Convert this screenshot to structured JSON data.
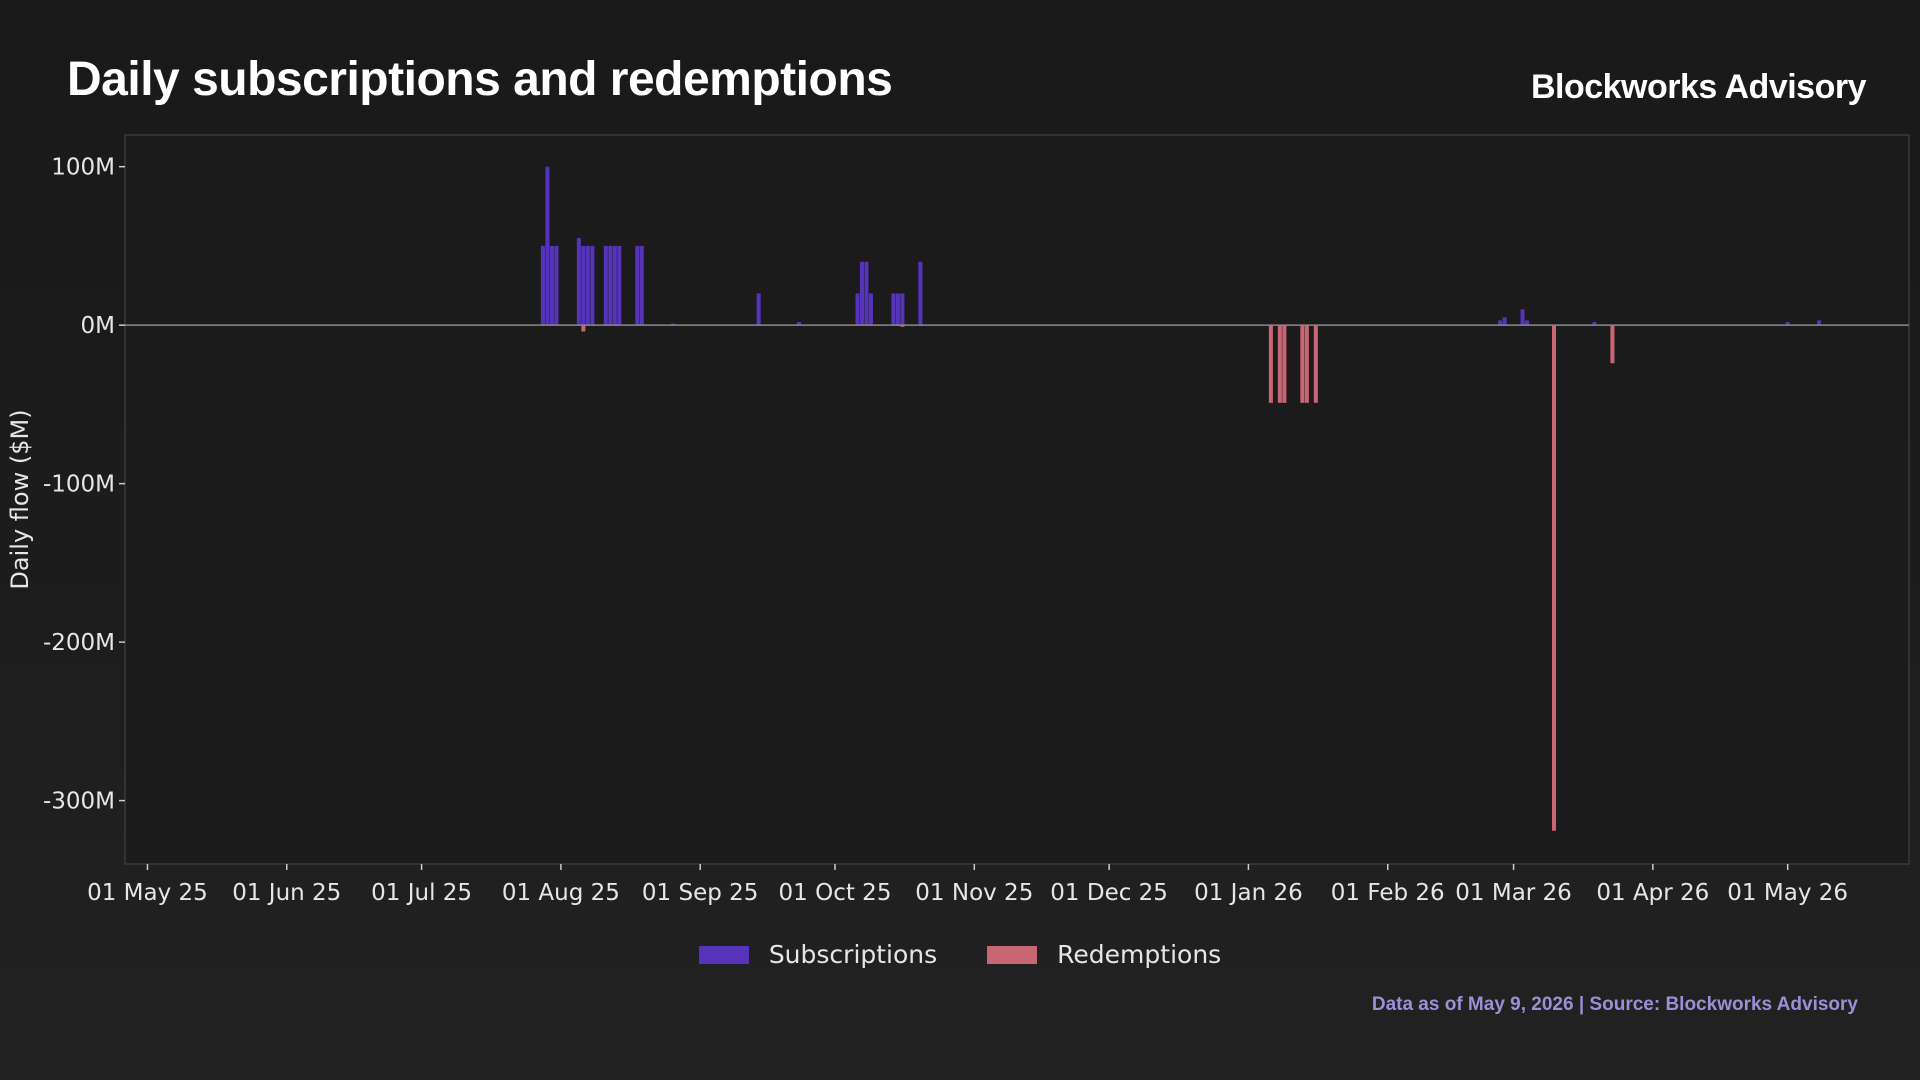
{
  "header": {
    "title": "Daily subscriptions and redemptions",
    "brand": "Blockworks Advisory"
  },
  "footer": {
    "note": "Data as of May 9, 2026 | Source: Blockworks Advisory"
  },
  "colors": {
    "subscriptions": "#5533bb",
    "redemptions": "#c96674",
    "zero_line": "#8a8a8a",
    "plot_border": "#3a3a3a"
  },
  "chart_data": {
    "type": "bar",
    "title": "Daily subscriptions and redemptions",
    "ylabel": "Daily flow ($M)",
    "xlabel": "",
    "ylim": [
      -340,
      120
    ],
    "xlim": [
      "2025-04-26",
      "2026-05-28"
    ],
    "yticks": [
      {
        "value": 100,
        "label": "100M"
      },
      {
        "value": 0,
        "label": "0M"
      },
      {
        "value": -100,
        "label": "-100M"
      },
      {
        "value": -200,
        "label": "-200M"
      },
      {
        "value": -300,
        "label": "-300M"
      }
    ],
    "xticks": [
      {
        "date": "2025-05-01",
        "label": "01 May 25"
      },
      {
        "date": "2025-06-01",
        "label": "01 Jun 25"
      },
      {
        "date": "2025-07-01",
        "label": "01 Jul 25"
      },
      {
        "date": "2025-08-01",
        "label": "01 Aug 25"
      },
      {
        "date": "2025-09-01",
        "label": "01 Sep 25"
      },
      {
        "date": "2025-10-01",
        "label": "01 Oct 25"
      },
      {
        "date": "2025-11-01",
        "label": "01 Nov 25"
      },
      {
        "date": "2025-12-01",
        "label": "01 Dec 25"
      },
      {
        "date": "2026-01-01",
        "label": "01 Jan 26"
      },
      {
        "date": "2026-02-01",
        "label": "01 Feb 26"
      },
      {
        "date": "2026-03-01",
        "label": "01 Mar 26"
      },
      {
        "date": "2026-04-01",
        "label": "01 Apr 26"
      },
      {
        "date": "2026-05-01",
        "label": "01 May 26"
      }
    ],
    "grid": false,
    "legend_position": "bottom-center",
    "series": [
      {
        "name": "Subscriptions",
        "points": [
          {
            "date": "2025-07-28",
            "value": 50
          },
          {
            "date": "2025-07-29",
            "value": 100
          },
          {
            "date": "2025-07-30",
            "value": 50
          },
          {
            "date": "2025-07-31",
            "value": 50
          },
          {
            "date": "2025-08-05",
            "value": 55
          },
          {
            "date": "2025-08-06",
            "value": 50
          },
          {
            "date": "2025-08-07",
            "value": 50
          },
          {
            "date": "2025-08-08",
            "value": 50
          },
          {
            "date": "2025-08-11",
            "value": 50
          },
          {
            "date": "2025-08-12",
            "value": 50
          },
          {
            "date": "2025-08-13",
            "value": 50
          },
          {
            "date": "2025-08-14",
            "value": 50
          },
          {
            "date": "2025-08-18",
            "value": 50
          },
          {
            "date": "2025-08-19",
            "value": 50
          },
          {
            "date": "2025-08-26",
            "value": 1
          },
          {
            "date": "2025-09-14",
            "value": 20
          },
          {
            "date": "2025-09-23",
            "value": 2
          },
          {
            "date": "2025-10-06",
            "value": 20
          },
          {
            "date": "2025-10-07",
            "value": 40
          },
          {
            "date": "2025-10-08",
            "value": 40
          },
          {
            "date": "2025-10-09",
            "value": 20
          },
          {
            "date": "2025-10-14",
            "value": 20
          },
          {
            "date": "2025-10-15",
            "value": 20
          },
          {
            "date": "2025-10-16",
            "value": 20
          },
          {
            "date": "2025-10-20",
            "value": 40
          },
          {
            "date": "2026-02-26",
            "value": 3
          },
          {
            "date": "2026-02-27",
            "value": 5
          },
          {
            "date": "2026-03-03",
            "value": 10
          },
          {
            "date": "2026-03-04",
            "value": 3
          },
          {
            "date": "2026-03-19",
            "value": 2
          },
          {
            "date": "2026-05-01",
            "value": 2
          },
          {
            "date": "2026-05-08",
            "value": 3
          }
        ]
      },
      {
        "name": "Redemptions",
        "points": [
          {
            "date": "2025-08-06",
            "value": -4
          },
          {
            "date": "2025-10-16",
            "value": -1
          },
          {
            "date": "2026-01-06",
            "value": -49
          },
          {
            "date": "2026-01-08",
            "value": -49
          },
          {
            "date": "2026-01-09",
            "value": -49
          },
          {
            "date": "2026-01-13",
            "value": -49
          },
          {
            "date": "2026-01-14",
            "value": -49
          },
          {
            "date": "2026-01-16",
            "value": -49
          },
          {
            "date": "2026-03-10",
            "value": -319
          },
          {
            "date": "2026-03-23",
            "value": -24
          }
        ]
      }
    ]
  }
}
